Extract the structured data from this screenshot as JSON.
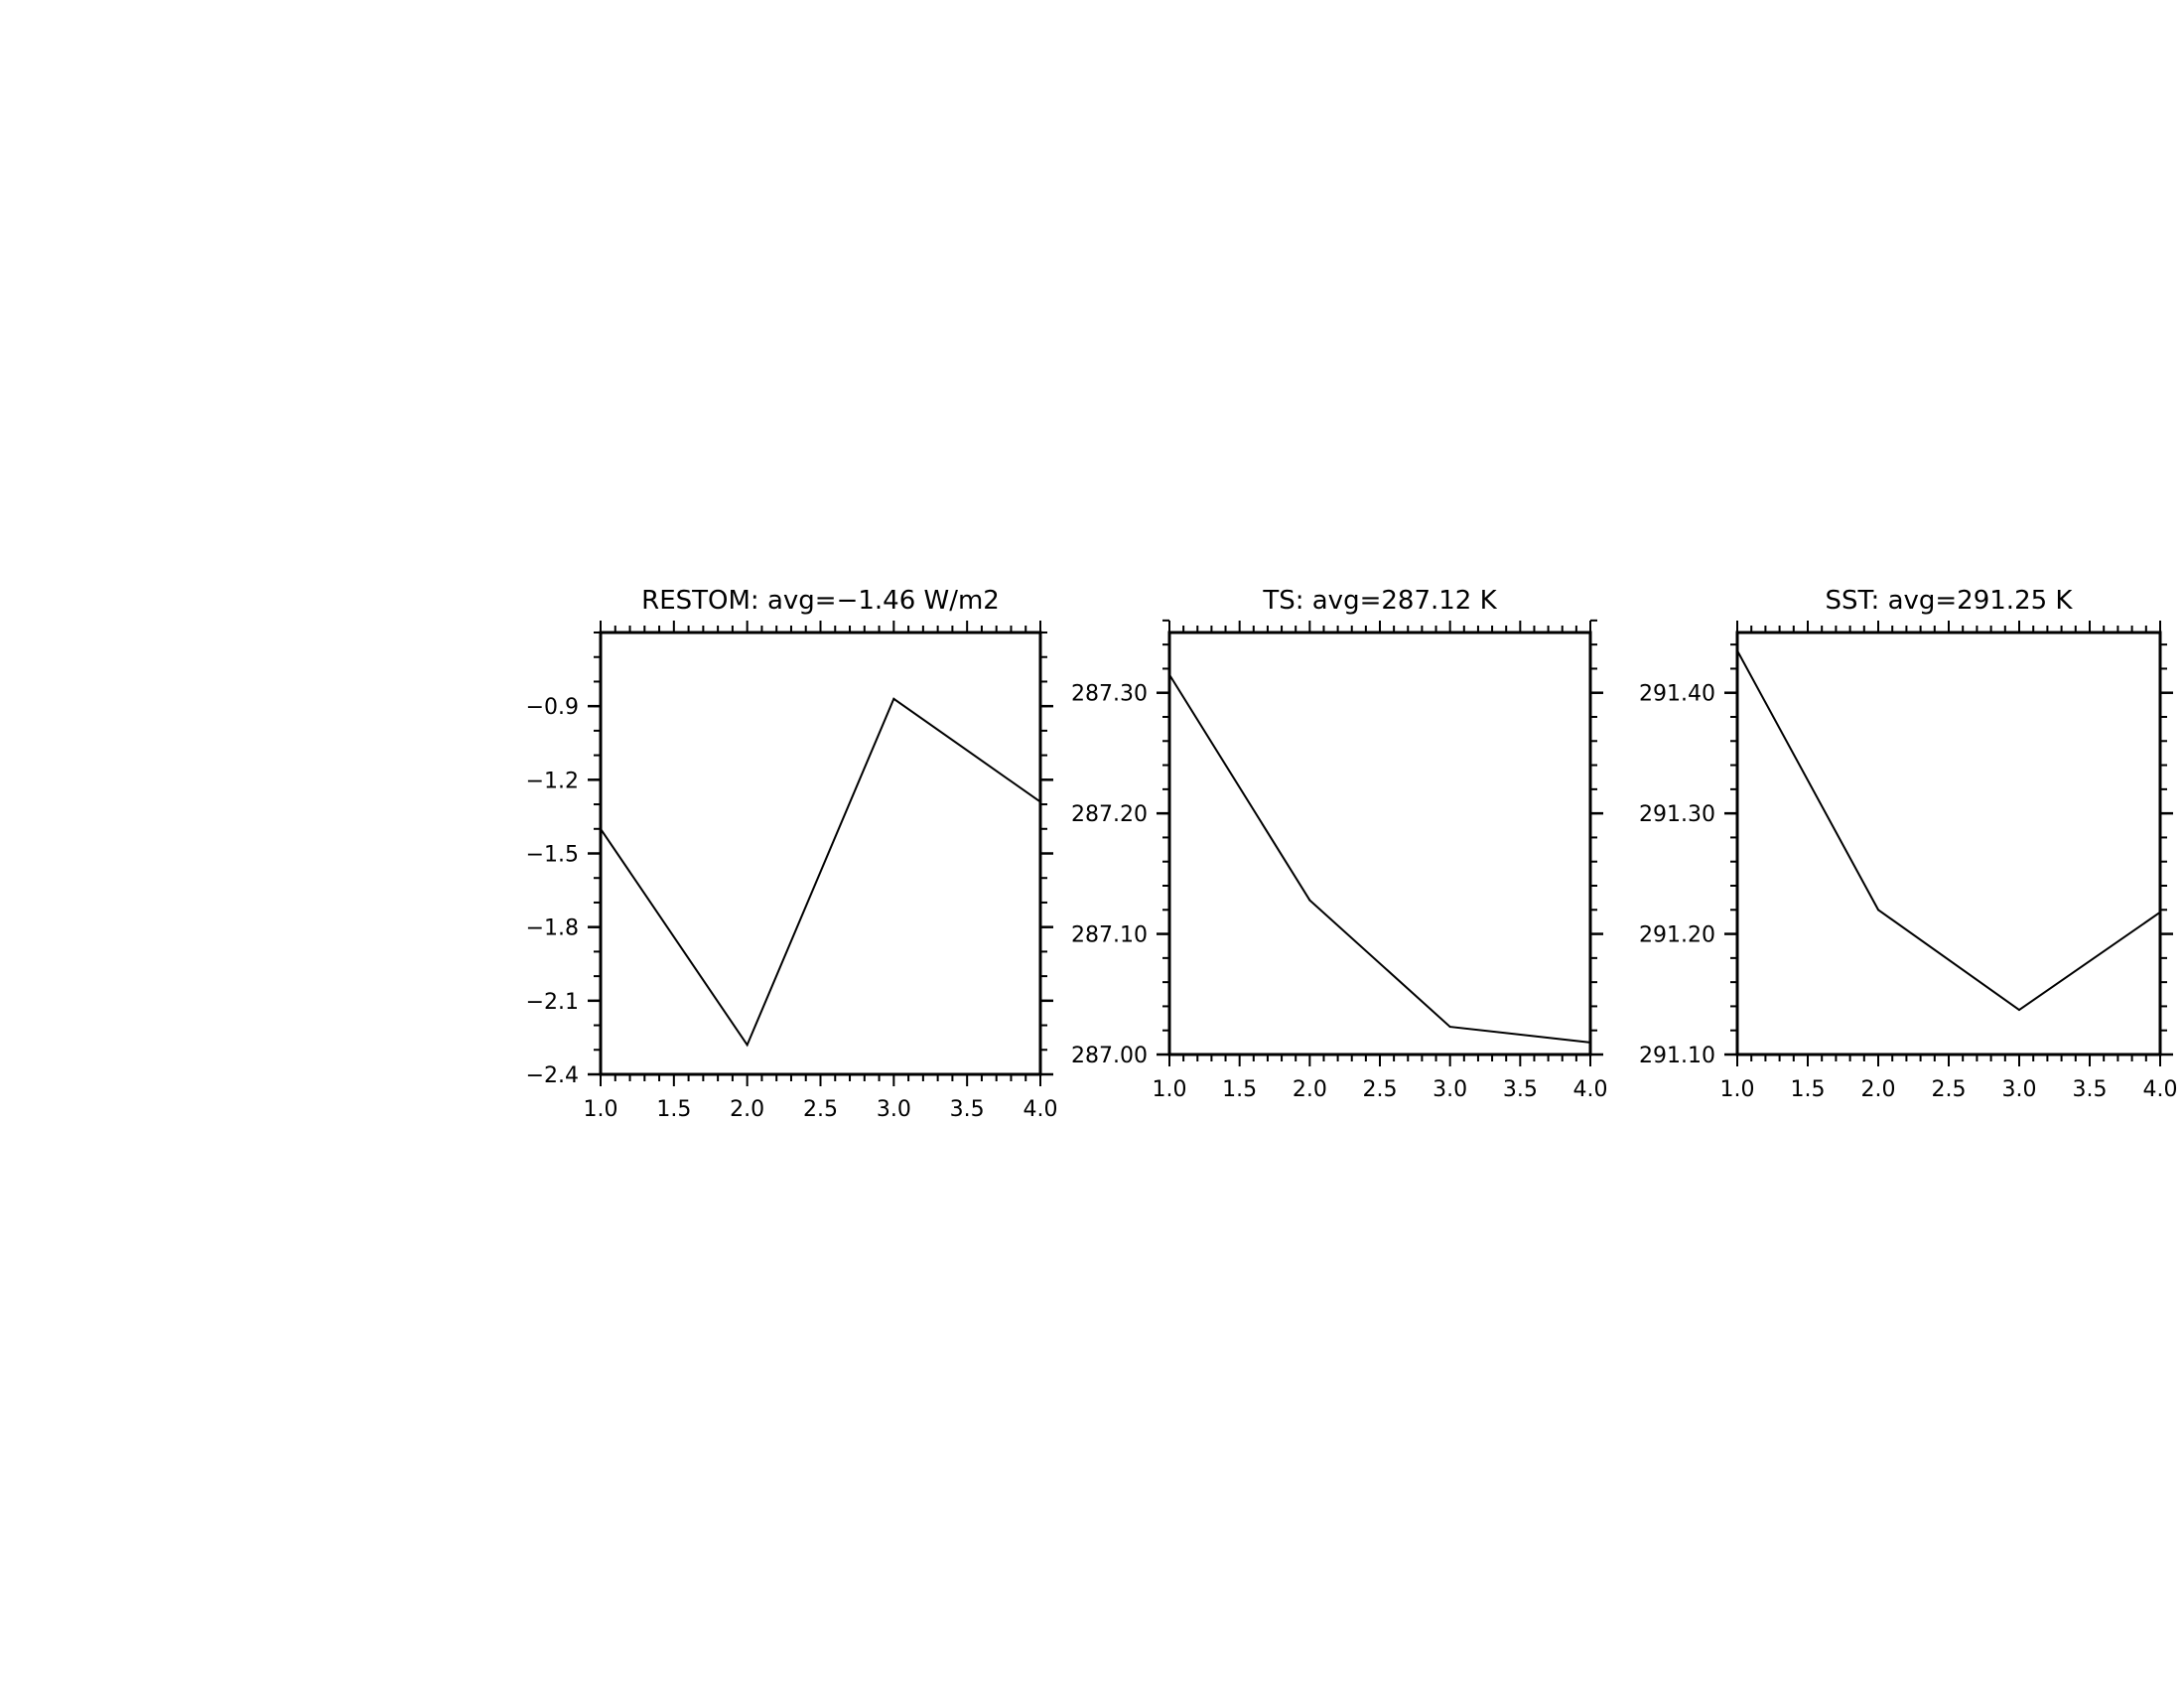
{
  "chart_data": [
    {
      "type": "line",
      "title": "RESTOM: avg=−1.46 W/m2",
      "xlabel": "",
      "ylabel": "",
      "xlim": [
        1.0,
        4.0
      ],
      "ylim": [
        -2.4,
        -0.6
      ],
      "x_ticks": [
        "1.0",
        "1.5",
        "2.0",
        "2.5",
        "3.0",
        "3.5",
        "4.0"
      ],
      "y_ticks": [
        "−2.4",
        "−2.1",
        "−1.8",
        "−1.5",
        "−1.2",
        "−0.9"
      ],
      "y_tick_values": [
        -2.4,
        -2.1,
        -1.8,
        -1.5,
        -1.2,
        -0.9
      ],
      "y_minor_step": 0.1,
      "x": [
        1,
        2,
        3,
        4
      ],
      "values": [
        -1.4,
        -2.28,
        -0.87,
        -1.29
      ]
    },
    {
      "type": "line",
      "title": "TS: avg=287.12 K",
      "xlabel": "",
      "ylabel": "",
      "xlim": [
        1.0,
        4.0
      ],
      "ylim": [
        287.0,
        287.35
      ],
      "x_ticks": [
        "1.0",
        "1.5",
        "2.0",
        "2.5",
        "3.0",
        "3.5",
        "4.0"
      ],
      "y_ticks": [
        "287.00",
        "287.10",
        "287.20",
        "287.30"
      ],
      "y_tick_values": [
        287.0,
        287.1,
        287.2,
        287.3
      ],
      "y_minor_step": 0.02,
      "x": [
        1,
        2,
        3,
        4
      ],
      "values": [
        287.315,
        287.128,
        287.023,
        287.01
      ]
    },
    {
      "type": "line",
      "title": "SST: avg=291.25 K",
      "xlabel": "",
      "ylabel": "",
      "xlim": [
        1.0,
        4.0
      ],
      "ylim": [
        291.1,
        291.45
      ],
      "x_ticks": [
        "1.0",
        "1.5",
        "2.0",
        "2.5",
        "3.0",
        "3.5",
        "4.0"
      ],
      "y_ticks": [
        "291.10",
        "291.20",
        "291.30",
        "291.40"
      ],
      "y_tick_values": [
        291.1,
        291.2,
        291.3,
        291.4
      ],
      "y_minor_step": 0.02,
      "x": [
        1,
        2,
        3,
        4
      ],
      "values": [
        291.435,
        291.22,
        291.137,
        291.218
      ]
    }
  ]
}
